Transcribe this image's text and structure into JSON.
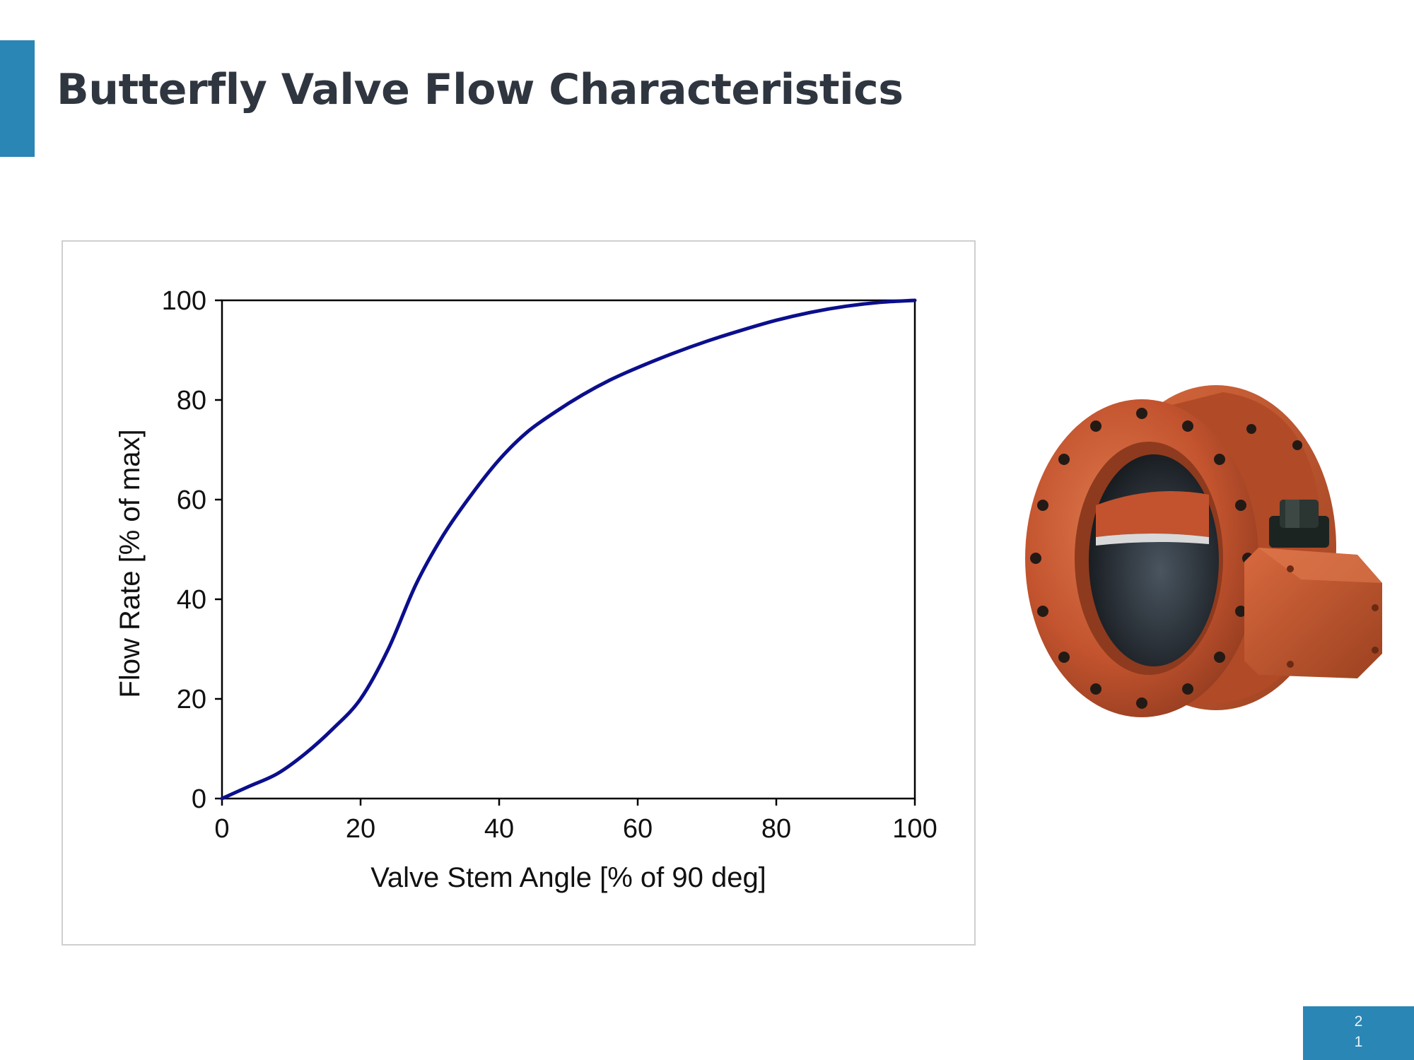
{
  "slide": {
    "title": "Butterfly Valve Flow Characteristics",
    "page_number_line1": "2",
    "page_number_line2": "1",
    "accent_color": "#2a86b4"
  },
  "image": {
    "description": "butterfly-valve-photo",
    "valve_color": "#c2532e"
  },
  "chart_data": {
    "type": "line",
    "title": "",
    "xlabel": "Valve Stem Angle [% of 90 deg]",
    "ylabel": "Flow Rate [% of max]",
    "xlim": [
      0,
      100
    ],
    "ylim": [
      0,
      100
    ],
    "xticks": [
      0,
      20,
      40,
      60,
      80,
      100
    ],
    "yticks": [
      0,
      20,
      40,
      60,
      80,
      100
    ],
    "xtick_labels": [
      "0",
      "20",
      "40",
      "60",
      "80",
      "100"
    ],
    "ytick_labels": [
      "0",
      "20",
      "40",
      "60",
      "80",
      "100"
    ],
    "grid": false,
    "series": [
      {
        "color": "#0b0f8c",
        "x": [
          0,
          4,
          8,
          12,
          16,
          20,
          24,
          28,
          32,
          36,
          40,
          44,
          48,
          52,
          56,
          60,
          65,
          70,
          75,
          80,
          85,
          90,
          95,
          100
        ],
        "y": [
          0,
          2.5,
          5,
          9,
          14,
          20,
          30,
          43,
          53,
          61,
          68,
          73.5,
          77.5,
          81,
          84,
          86.5,
          89.3,
          91.8,
          94,
          96,
          97.6,
          98.8,
          99.6,
          100
        ]
      }
    ]
  }
}
